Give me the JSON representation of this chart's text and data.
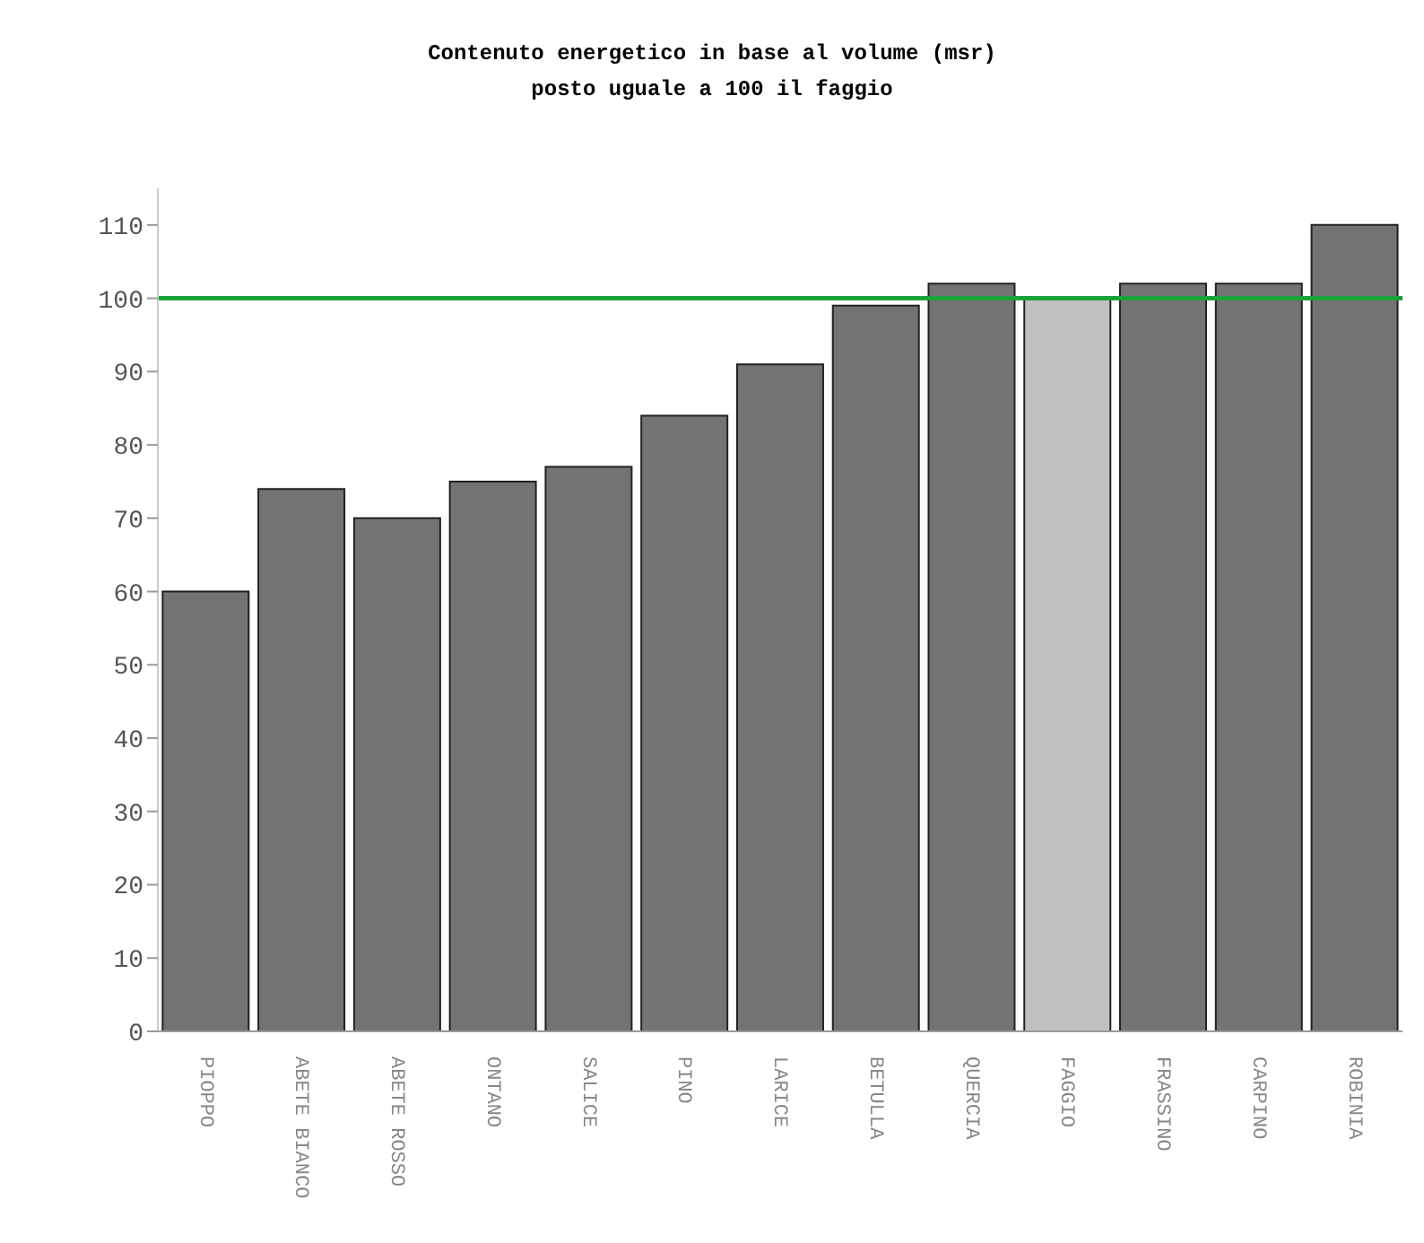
{
  "chart_data": {
    "type": "bar",
    "title": "Contenuto energetico in base al volume (msr)",
    "subtitle": "posto uguale a 100 il faggio",
    "categories": [
      "PIOPPO",
      "ABETE BIANCO",
      "ABETE ROSSO",
      "ONTANO",
      "SALICE",
      "PINO",
      "LARICE",
      "BETULLA",
      "QUERCIA",
      "FAGGIO",
      "FRASSINO",
      "CARPINO",
      "ROBINIA"
    ],
    "values": [
      60,
      74,
      70,
      75,
      77,
      84,
      91,
      99,
      102,
      100,
      102,
      102,
      110
    ],
    "colors": [
      "#737373",
      "#737373",
      "#737373",
      "#737373",
      "#737373",
      "#737373",
      "#737373",
      "#737373",
      "#737373",
      "#c0c0c0",
      "#737373",
      "#737373",
      "#737373"
    ],
    "ylim": [
      0,
      115
    ],
    "yticks": [
      0,
      10,
      20,
      30,
      40,
      50,
      60,
      70,
      80,
      90,
      100,
      110
    ],
    "grid": false,
    "legend": false,
    "ref_lines": [
      {
        "axis": "y",
        "value": 100,
        "color": "#1aa33a"
      }
    ]
  }
}
